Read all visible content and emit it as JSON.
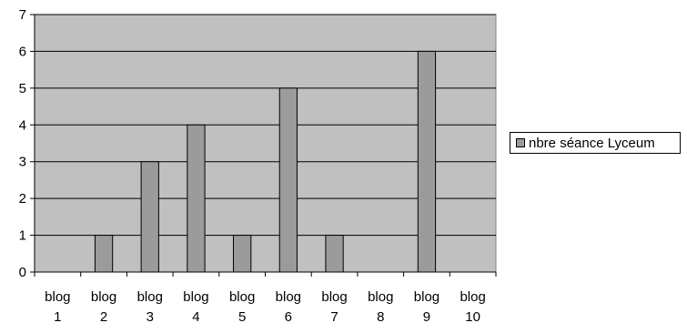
{
  "chart_data": {
    "type": "bar",
    "categories": [
      [
        "blog",
        "1"
      ],
      [
        "blog",
        "2"
      ],
      [
        "blog",
        "3"
      ],
      [
        "blog",
        "4"
      ],
      [
        "blog",
        "5"
      ],
      [
        "blog",
        "6"
      ],
      [
        "blog",
        "7"
      ],
      [
        "blog",
        "8"
      ],
      [
        "blog",
        "9"
      ],
      [
        "blog",
        "10"
      ]
    ],
    "series": [
      {
        "name": "nbre séance Lyceum",
        "values": [
          0,
          1,
          3,
          4,
          1,
          5,
          1,
          0,
          6,
          0
        ]
      }
    ],
    "yticks": [
      "0",
      "1",
      "2",
      "3",
      "4",
      "5",
      "6",
      "7"
    ],
    "ylim": [
      0,
      7
    ],
    "grid": true,
    "legend": "right",
    "colors": {
      "plot_background": "#c0c0c0",
      "bar": "#9b9b9b",
      "gridline": "#000000"
    }
  }
}
